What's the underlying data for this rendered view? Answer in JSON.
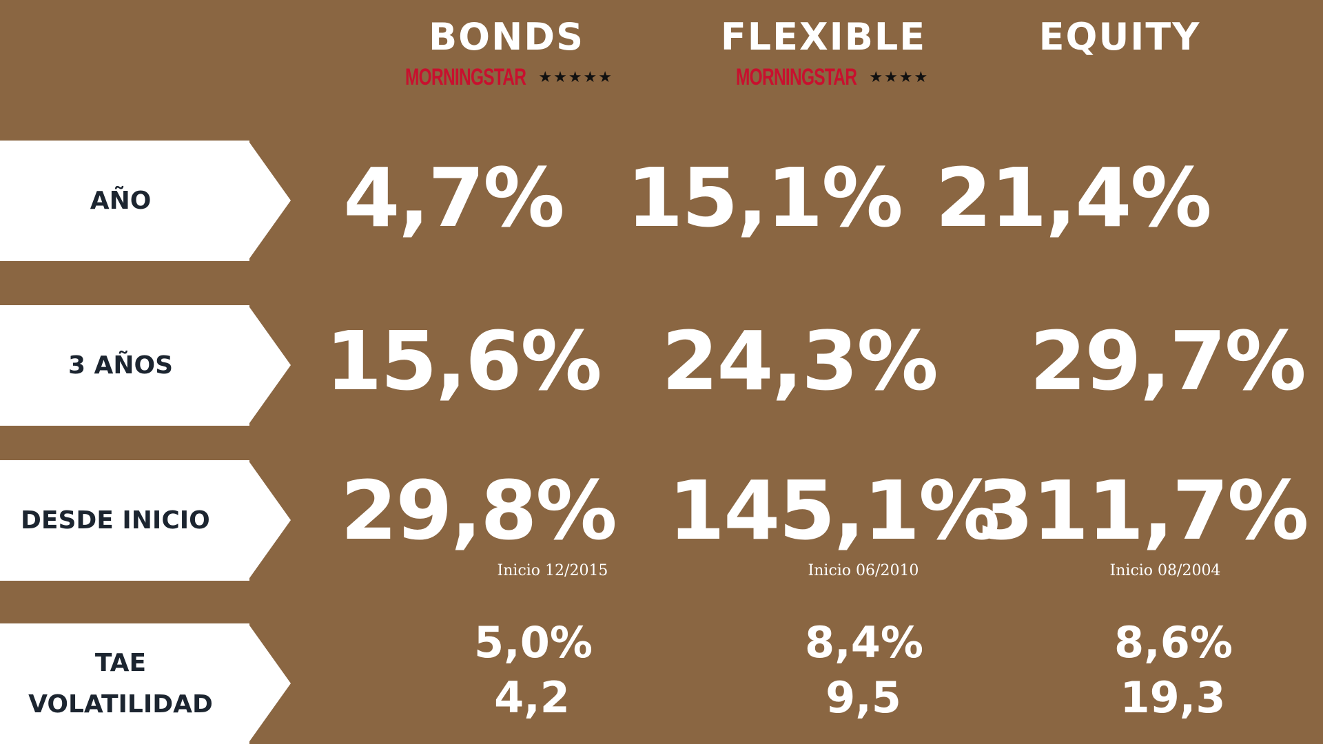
{
  "columns": [
    {
      "title": "BONDS",
      "rating_logo": "MORNINGSTAR",
      "rating_stars": "★★★★★"
    },
    {
      "title": "FLEXIBLE",
      "rating_logo": "MORNINGSTAR",
      "rating_stars": "★★★★"
    },
    {
      "title": "EQUITY"
    }
  ],
  "rows": [
    {
      "label": "AÑO",
      "values": [
        "4,7%",
        "15,1%",
        "21,4%"
      ]
    },
    {
      "label": "3 AÑOS",
      "values": [
        "15,6%",
        "24,3%",
        "29,7%"
      ]
    },
    {
      "label": "DESDE INICIO",
      "values": [
        "29,8%",
        "145,1%",
        "311,7%"
      ],
      "notes": [
        "Inicio 12/2015",
        "Inicio 06/2010",
        "Inicio 08/2004"
      ]
    },
    {
      "label_lines": [
        "TAE",
        "VOLATILIDAD"
      ],
      "tae": [
        "5,0%",
        "8,4%",
        "8,6%"
      ],
      "volatilidad": [
        "4,2",
        "9,5",
        "19,3"
      ]
    }
  ],
  "colors": {
    "background": "#8a6642",
    "label_bg": "#ffffff",
    "label_text": "#1c2530",
    "value_text": "#ffffff",
    "morningstar_red": "#c8102e"
  }
}
